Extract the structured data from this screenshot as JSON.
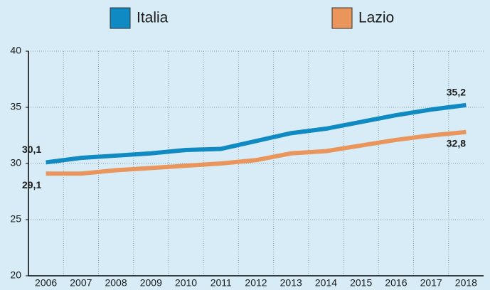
{
  "chart_data": {
    "type": "line",
    "categories": [
      "2006",
      "2007",
      "2008",
      "2009",
      "2010",
      "2011",
      "2012",
      "2013",
      "2014",
      "2015",
      "2016",
      "2017",
      "2018"
    ],
    "series": [
      {
        "name": "Italia",
        "color": "#0f8ac2",
        "values": [
          30.1,
          30.5,
          30.7,
          30.9,
          31.2,
          31.3,
          32.0,
          32.7,
          33.1,
          33.7,
          34.3,
          34.8,
          35.2
        ],
        "value_labels": [
          "30,1",
          null,
          null,
          null,
          null,
          null,
          null,
          null,
          null,
          null,
          null,
          null,
          "35,2"
        ]
      },
      {
        "name": "Lazio",
        "color": "#e9955b",
        "values": [
          29.1,
          29.1,
          29.4,
          29.6,
          29.8,
          30.0,
          30.3,
          30.9,
          31.1,
          31.6,
          32.1,
          32.5,
          32.8
        ],
        "value_labels": [
          "29,1",
          null,
          null,
          null,
          null,
          null,
          null,
          null,
          null,
          null,
          null,
          null,
          "32,8"
        ]
      }
    ],
    "ylim": [
      20,
      40
    ],
    "yticks": [
      20,
      25,
      30,
      35,
      40
    ],
    "grid": true,
    "legend": "top"
  }
}
